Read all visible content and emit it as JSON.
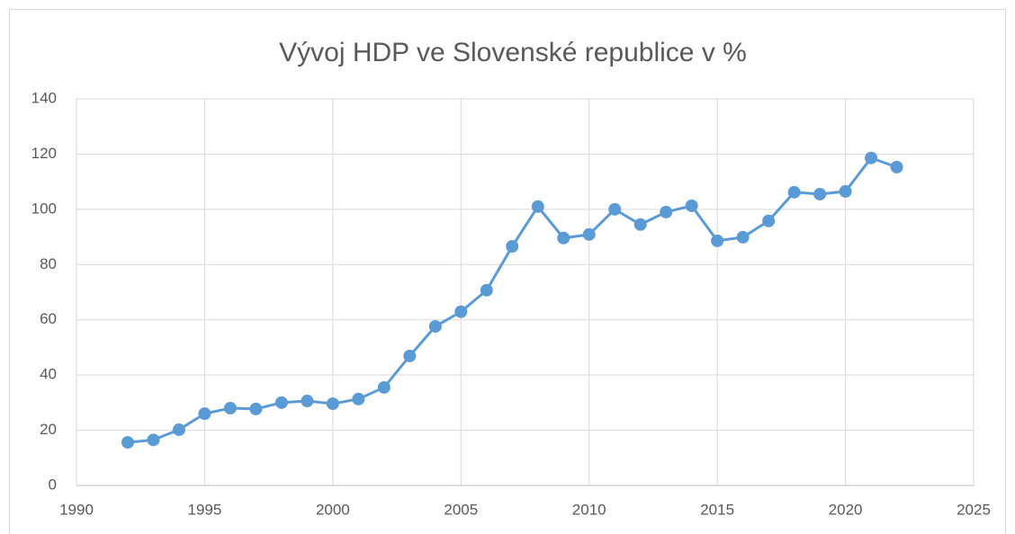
{
  "chart_data": {
    "type": "line",
    "title": "Vývoj HDP ve Slovenské republice v %",
    "x": [
      1992,
      1993,
      1994,
      1995,
      1996,
      1997,
      1998,
      1999,
      2000,
      2001,
      2002,
      2003,
      2004,
      2005,
      2006,
      2007,
      2008,
      2009,
      2010,
      2011,
      2012,
      2013,
      2014,
      2015,
      2016,
      2017,
      2018,
      2019,
      2020,
      2021,
      2022
    ],
    "values": [
      15.6,
      16.5,
      20.2,
      26,
      28,
      27.7,
      30,
      30.6,
      29.6,
      31.3,
      35.5,
      46.9,
      57.6,
      62.9,
      70.7,
      86.6,
      101,
      89.6,
      90.9,
      100,
      94.5,
      99,
      101.3,
      88.6,
      89.9,
      95.8,
      106.2,
      105.5,
      106.5,
      118.6,
      115.3
    ],
    "color": "#5b9bd5",
    "xlim": [
      1990,
      2025
    ],
    "xticks": [
      1990,
      1995,
      2000,
      2005,
      2010,
      2015,
      2020,
      2025
    ],
    "ylim": [
      0,
      140
    ],
    "yticks": [
      0,
      20,
      40,
      60,
      80,
      100,
      120,
      140
    ],
    "grid": true
  }
}
